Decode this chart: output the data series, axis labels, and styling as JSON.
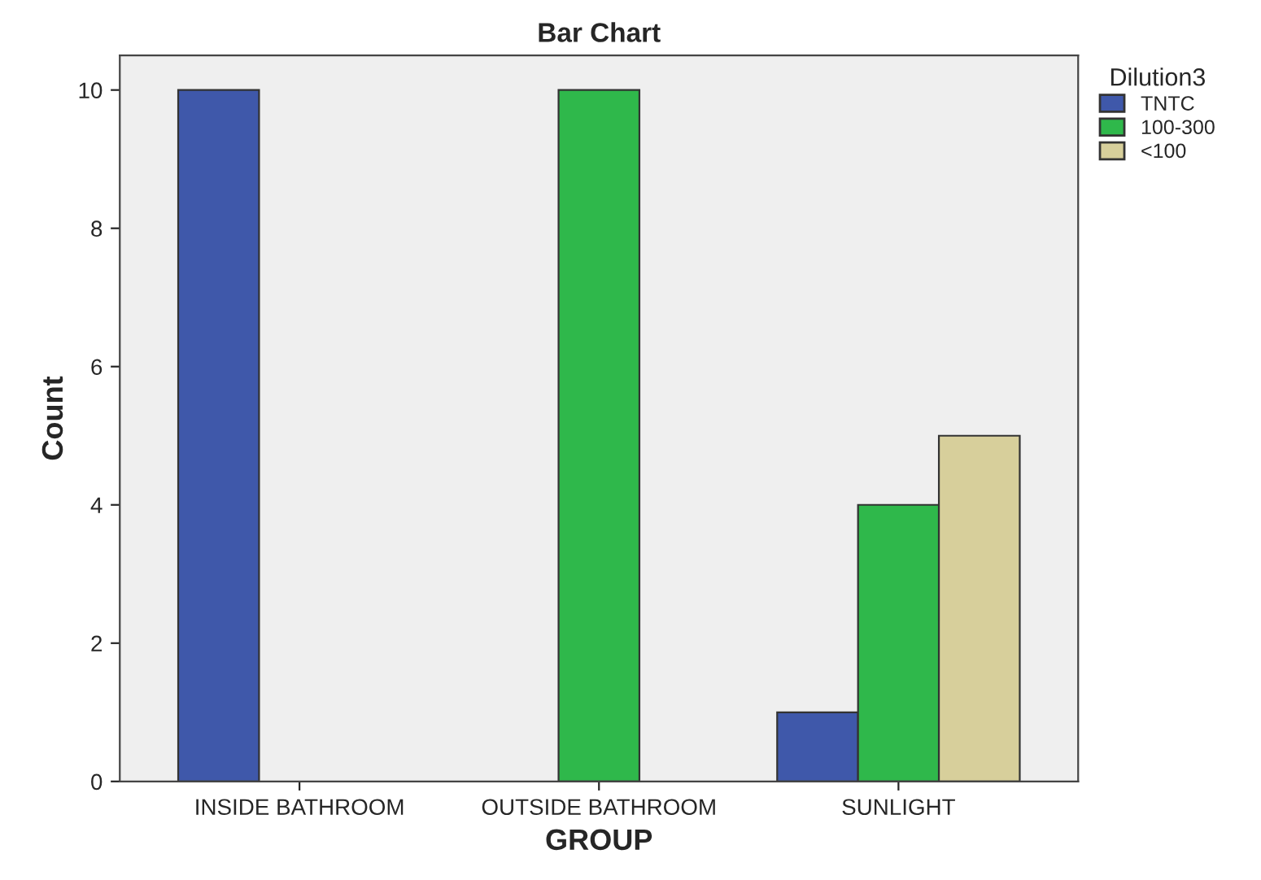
{
  "chart_data": {
    "type": "bar",
    "title": "Bar Chart",
    "xlabel": "GROUP",
    "ylabel": "Count",
    "legend_title": "Dilution3",
    "categories": [
      "INSIDE BATHROOM",
      "OUTSIDE BATHROOM",
      "SUNLIGHT"
    ],
    "series": [
      {
        "name": "TNTC",
        "color": "#3f58aa",
        "values": [
          10,
          null,
          1
        ]
      },
      {
        "name": "100-300",
        "color": "#2fb84b",
        "values": [
          null,
          10,
          4
        ]
      },
      {
        "name": "<100",
        "color": "#d7cf9b",
        "values": [
          null,
          null,
          5
        ]
      }
    ],
    "ylim": [
      0,
      10.5
    ],
    "yticks": [
      0,
      2,
      4,
      6,
      8,
      10
    ],
    "grid": false,
    "legend": "top right"
  }
}
